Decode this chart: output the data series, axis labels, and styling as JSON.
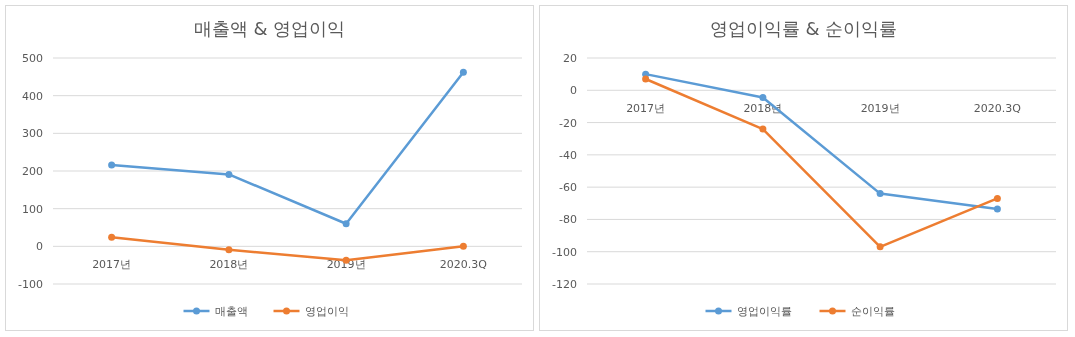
{
  "chart_data": [
    {
      "type": "line",
      "title": "매출액 & 영업이익",
      "categories": [
        "2017년",
        "2018년",
        "2019년",
        "2020.3Q"
      ],
      "series": [
        {
          "name": "매출액",
          "color": "#5b9bd5",
          "values": [
            216,
            191,
            60,
            462
          ]
        },
        {
          "name": "영업이익",
          "color": "#ed7d31",
          "values": [
            24,
            -9,
            -37,
            0
          ]
        }
      ],
      "ylim": [
        -100,
        500
      ],
      "yticks": [
        -100,
        0,
        100,
        200,
        300,
        400,
        500
      ],
      "grid": "y",
      "legend": "bottom",
      "marker": "circle",
      "line_style": "solid"
    },
    {
      "type": "line",
      "title": "영업이익률 & 순이익률",
      "categories": [
        "2017년",
        "2018년",
        "2019년",
        "2020.3Q"
      ],
      "series": [
        {
          "name": "영업이익률",
          "color": "#5b9bd5",
          "values": [
            10,
            -4.5,
            -64,
            -73.5
          ]
        },
        {
          "name": "순이익률",
          "color": "#ed7d31",
          "values": [
            7,
            -24,
            -97,
            -67
          ]
        }
      ],
      "ylim": [
        -120,
        20
      ],
      "yticks": [
        -120,
        -100,
        -80,
        -60,
        -40,
        -20,
        0,
        20
      ],
      "grid": "y",
      "legend": "bottom",
      "marker": "circle",
      "line_style": "solid"
    }
  ]
}
